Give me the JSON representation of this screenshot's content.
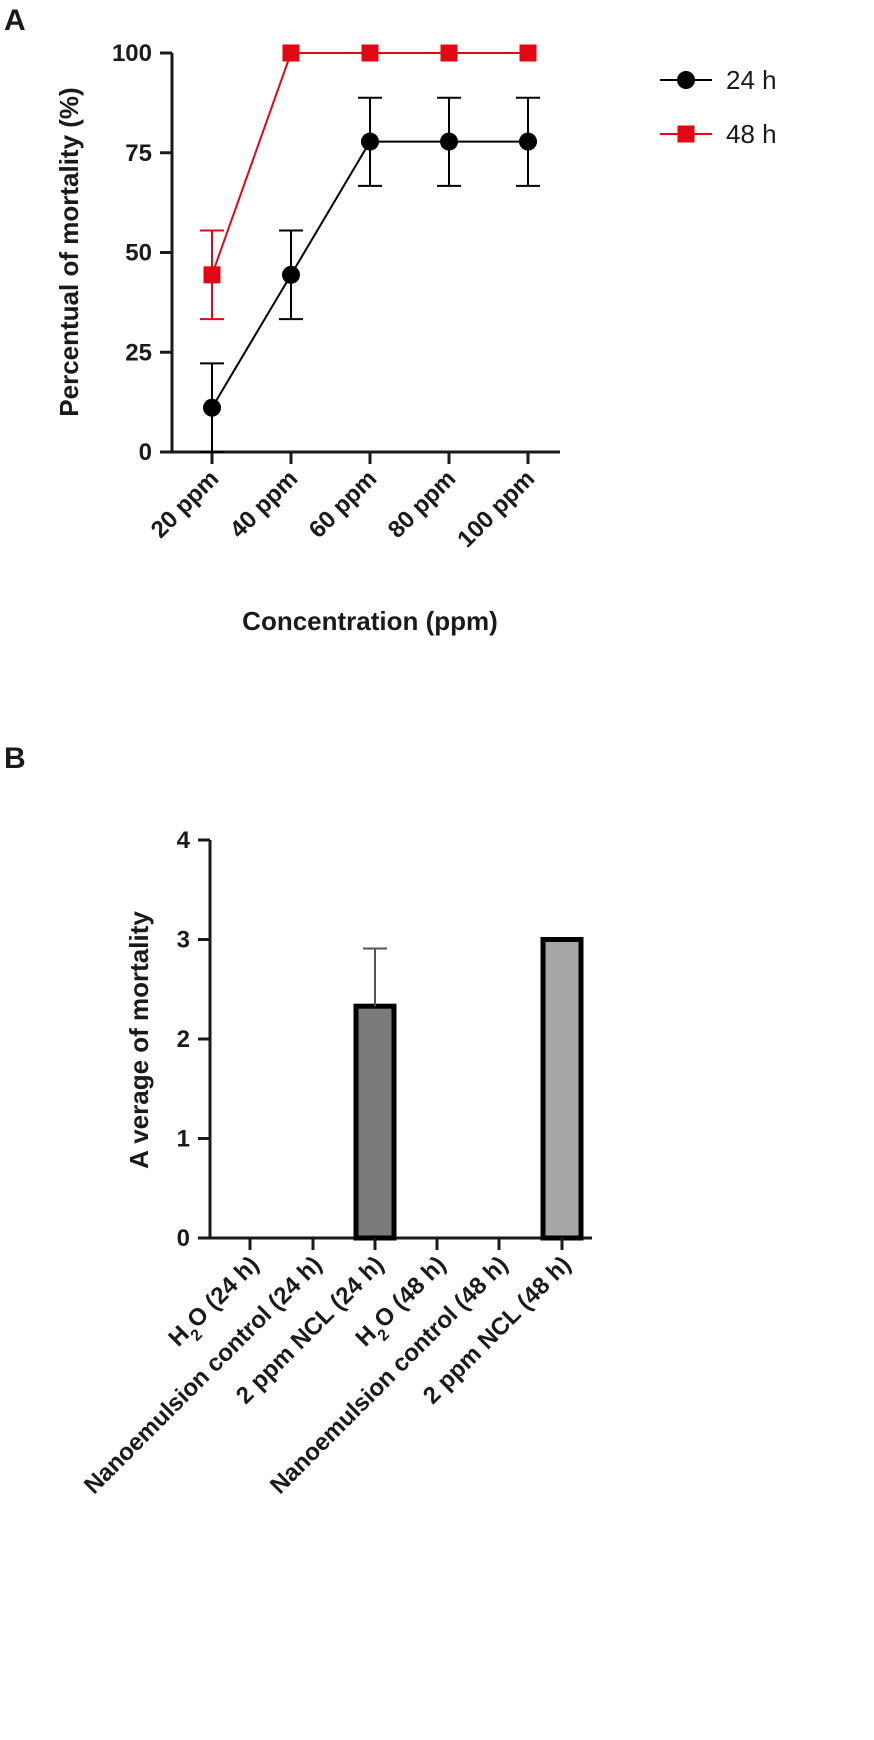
{
  "chart_data": [
    {
      "panel_label": "A",
      "type": "line",
      "categories": [
        "20 ppm",
        "40 ppm",
        "60 ppm",
        "80 ppm",
        "100 ppm"
      ],
      "xlabel": "Concentration (ppm)",
      "ylabel": "Percentual of mortality (%)",
      "ylim": [
        0,
        100
      ],
      "yticks": [
        0,
        25,
        50,
        75,
        100
      ],
      "legend_position": "top-right",
      "series": [
        {
          "name": "24 h",
          "color": "#000000",
          "marker": "circle",
          "values": [
            11.1,
            44.4,
            77.8,
            77.8,
            77.8
          ],
          "err_upper": [
            22.2,
            55.5,
            88.8,
            88.8,
            88.8
          ],
          "err_lower": [
            0,
            33.3,
            66.7,
            66.7,
            66.7
          ]
        },
        {
          "name": "48 h",
          "color": "#e30613",
          "marker": "square",
          "values": [
            44.4,
            100,
            100,
            100,
            100
          ],
          "err_upper": [
            55.5,
            100,
            100,
            100,
            100
          ],
          "err_lower": [
            33.3,
            100,
            100,
            100,
            100
          ]
        }
      ]
    },
    {
      "panel_label": "B",
      "type": "bar",
      "categories": [
        {
          "pre": "H",
          "sub": "2",
          "post": "O (24 h)"
        },
        {
          "pre": "Nanoemulsion control (24 h)",
          "sub": "",
          "post": ""
        },
        {
          "pre": "2 ppm NCL (24 h)",
          "sub": "",
          "post": ""
        },
        {
          "pre": "H",
          "sub": "2",
          "post": "O (48 h)"
        },
        {
          "pre": "Nanoemulsion control (48 h)",
          "sub": "",
          "post": ""
        },
        {
          "pre": "2 ppm NCL (48 h)",
          "sub": "",
          "post": ""
        }
      ],
      "values": [
        0,
        0,
        2.33,
        0,
        0,
        3
      ],
      "err_upper": [
        null,
        null,
        2.91,
        null,
        null,
        null
      ],
      "bar_colors": [
        "#7a7a7a",
        "#7a7a7a",
        "#7a7a7a",
        "#a6a6a6",
        "#a6a6a6",
        "#a6a6a6"
      ],
      "xlabel": "",
      "ylabel": "A verage of mortality",
      "ylim": [
        0,
        4
      ],
      "yticks": [
        0,
        1,
        2,
        3,
        4
      ]
    }
  ]
}
